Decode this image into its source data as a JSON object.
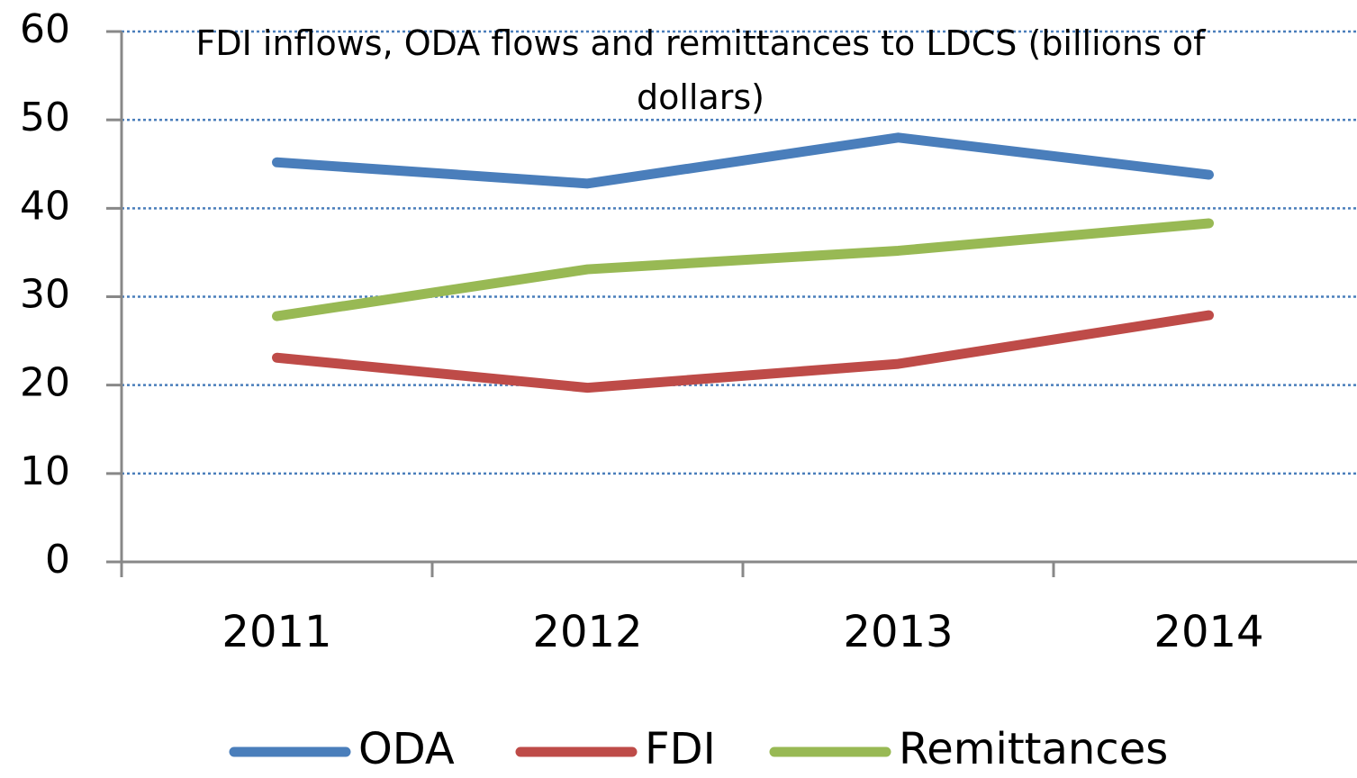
{
  "chart_data": {
    "type": "line",
    "title": "FDI inflows, ODA flows and remittances to LDCS (billions of dollars)",
    "categories": [
      "2011",
      "2012",
      "2013",
      "2014"
    ],
    "series": [
      {
        "name": "ODA",
        "color": "#4a7ebb",
        "values": [
          45.2,
          42.8,
          48.0,
          43.8
        ]
      },
      {
        "name": "FDI",
        "color": "#be4b48",
        "values": [
          23.1,
          19.7,
          22.4,
          27.9
        ]
      },
      {
        "name": "Remittances",
        "color": "#98b954",
        "values": [
          27.8,
          33.1,
          35.2,
          38.3
        ]
      }
    ],
    "ylim": [
      0,
      60
    ],
    "yticks": [
      0,
      10,
      20,
      30,
      40,
      50,
      60
    ],
    "grid": true,
    "legend": "bottom"
  }
}
